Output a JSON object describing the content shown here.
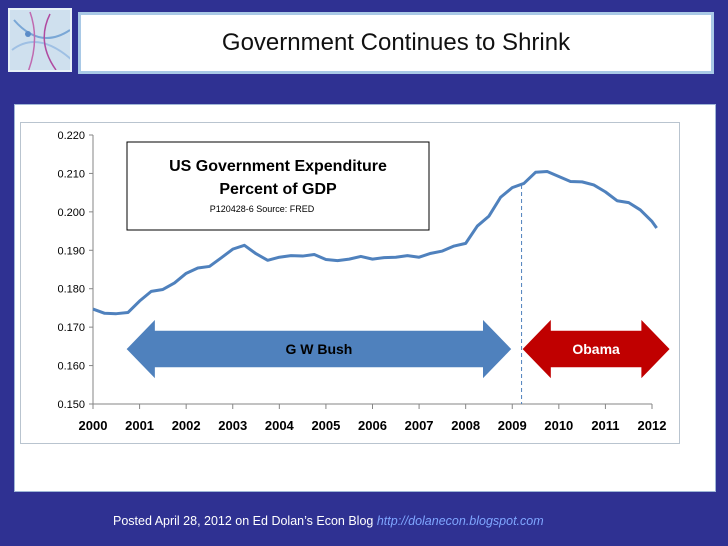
{
  "slide_title": "Government Continues to Shrink",
  "footer": {
    "text": "Posted April 28, 2012 on Ed Dolan’s Econ Blog",
    "link": "http://dolanecon.blogspot.com"
  },
  "colors": {
    "background": "#2f3192",
    "line": "#4f81bd",
    "bush_arrow": "#4f81bd",
    "obama_arrow": "#c00000"
  },
  "chart_data": {
    "type": "line",
    "title": "US Government Expenditure",
    "subtitle": "Percent of GDP",
    "source_note": "P120428-6 Source: FRED",
    "xlabel": "",
    "ylabel": "",
    "x_tick_labels": [
      "2000",
      "2001",
      "2002",
      "2003",
      "2004",
      "2005",
      "2006",
      "2007",
      "2008",
      "2009",
      "2010",
      "2011",
      "2012"
    ],
    "y_tick_labels": [
      "0.220",
      "0.210",
      "0.200",
      "0.190",
      "0.180",
      "0.170",
      "0.160",
      "0.150"
    ],
    "xlim": [
      2000,
      2012
    ],
    "ylim": [
      0.15,
      0.22
    ],
    "grid": false,
    "series": [
      {
        "values": [
          [
            2000.0,
            0.1747
          ],
          [
            2000.25,
            0.1736
          ],
          [
            2000.5,
            0.1735
          ],
          [
            2000.75,
            0.1738
          ],
          [
            2001.0,
            0.1768
          ],
          [
            2001.25,
            0.1793
          ],
          [
            2001.5,
            0.1798
          ],
          [
            2001.75,
            0.1815
          ],
          [
            2002.0,
            0.184
          ],
          [
            2002.25,
            0.1854
          ],
          [
            2002.5,
            0.1858
          ],
          [
            2002.75,
            0.188
          ],
          [
            2003.0,
            0.1903
          ],
          [
            2003.25,
            0.1913
          ],
          [
            2003.5,
            0.1891
          ],
          [
            2003.75,
            0.1874
          ],
          [
            2004.0,
            0.1882
          ],
          [
            2004.25,
            0.1886
          ],
          [
            2004.5,
            0.1885
          ],
          [
            2004.75,
            0.1889
          ],
          [
            2005.0,
            0.1876
          ],
          [
            2005.25,
            0.1873
          ],
          [
            2005.5,
            0.1877
          ],
          [
            2005.75,
            0.1884
          ],
          [
            2006.0,
            0.1877
          ],
          [
            2006.25,
            0.1881
          ],
          [
            2006.5,
            0.1882
          ],
          [
            2006.75,
            0.1886
          ],
          [
            2007.0,
            0.1882
          ],
          [
            2007.25,
            0.1892
          ],
          [
            2007.5,
            0.1898
          ],
          [
            2007.75,
            0.1911
          ],
          [
            2008.0,
            0.1918
          ],
          [
            2008.25,
            0.1963
          ],
          [
            2008.5,
            0.1989
          ],
          [
            2008.75,
            0.2038
          ],
          [
            2009.0,
            0.2063
          ],
          [
            2009.25,
            0.2074
          ],
          [
            2009.5,
            0.2103
          ],
          [
            2009.75,
            0.2105
          ],
          [
            2010.0,
            0.2092
          ],
          [
            2010.25,
            0.2079
          ],
          [
            2010.5,
            0.2078
          ],
          [
            2010.75,
            0.207
          ],
          [
            2011.0,
            0.2052
          ],
          [
            2011.25,
            0.2029
          ],
          [
            2011.5,
            0.2024
          ],
          [
            2011.75,
            0.2005
          ],
          [
            2012.0,
            0.1975
          ],
          [
            2012.1,
            0.1958
          ]
        ]
      }
    ],
    "annotations": [
      {
        "text": "G W Bush",
        "from": 2000.7,
        "to": 2009.0,
        "y": 0.1643
      },
      {
        "text": "Obama",
        "from": 2009.2,
        "to": 2012.4,
        "y": 0.1643
      }
    ],
    "vertical_marker": {
      "x": 2009.2
    }
  }
}
